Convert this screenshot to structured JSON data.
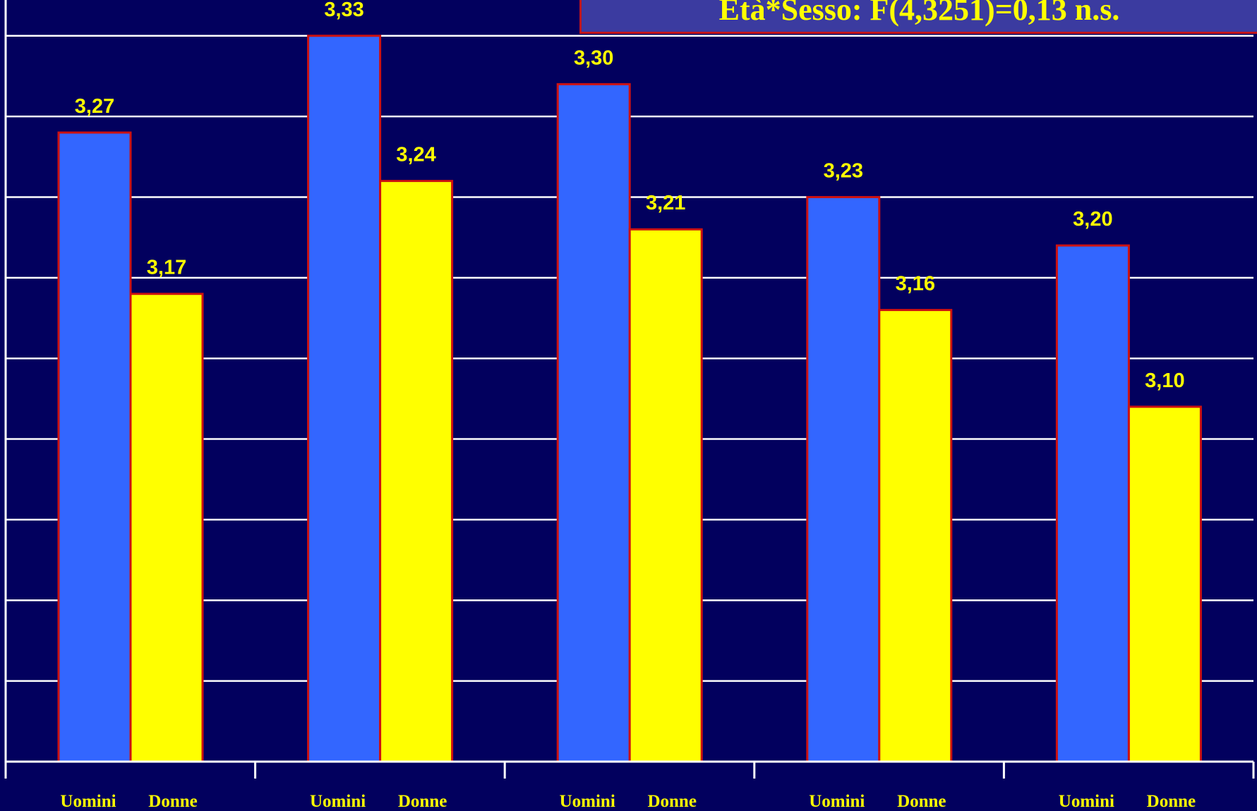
{
  "annotation": "Età*Sesso: F(4,3251)=0,13 n.s.",
  "colors": {
    "background": "#02005e",
    "gridline": "#ffffff",
    "uomini": "#3366ff",
    "donne": "#ffff00",
    "bar_border": "#cc1111",
    "label": "#ffff00"
  },
  "chart_data": {
    "type": "bar",
    "grid": true,
    "legend": "none",
    "ylim": [
      2.88,
      3.35
    ],
    "series": [
      {
        "values": [
          3.27,
          3.33,
          3.3,
          3.23,
          3.2
        ],
        "color": "#3366ff"
      },
      {
        "values": [
          3.17,
          3.24,
          3.21,
          3.16,
          3.1
        ],
        "color": "#ffff00"
      }
    ],
    "value_labels": [
      [
        "3,27",
        "3,33",
        "3,30",
        "3,23",
        "3,20"
      ],
      [
        "3,17",
        "3,24",
        "3,21",
        "3,16",
        "3,10"
      ]
    ],
    "category_labels": [
      [
        "Uomini",
        "Donne"
      ],
      [
        "Uomini",
        "Donne"
      ],
      [
        "Uomini",
        "Donne"
      ],
      [
        "Uomini",
        "Donne"
      ],
      [
        "Uomini",
        "Donne"
      ]
    ]
  }
}
